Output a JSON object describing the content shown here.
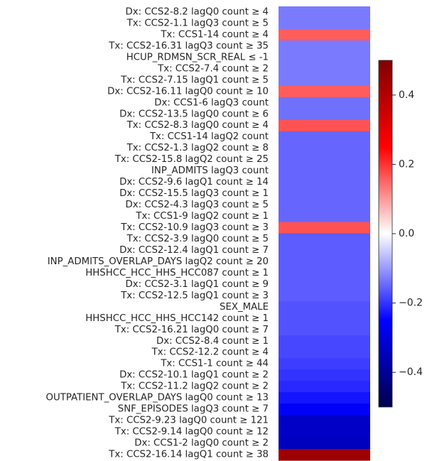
{
  "chart_data": {
    "type": "heatmap",
    "colormap": "seismic",
    "color_scale": {
      "min": -0.5,
      "max": 0.5
    },
    "colorbar_ticks": [
      0.4,
      0.2,
      0.0,
      -0.2,
      -0.4
    ],
    "colorbar_tick_labels": [
      "0.4",
      "0.2",
      "0.0",
      "−0.2",
      "−0.4"
    ],
    "grid": false,
    "rows": [
      {
        "label": "Dx:   CCS2-8.2 lagQ0 count ≥ 4",
        "value": -0.13
      },
      {
        "label": "Tx:   CCS2-1.1 lagQ3 count ≥ 5",
        "value": -0.13
      },
      {
        "label": "Tx:   CCS1-14 count ≥ 4",
        "value": 0.16
      },
      {
        "label": "Tx:   CCS2-16.31 lagQ3 count ≥ 35",
        "value": -0.13
      },
      {
        "label": "HCUP_RDMSN_SCR_REAL ≤ -1",
        "value": -0.13
      },
      {
        "label": "Tx:   CCS2-7.4 count ≥ 2",
        "value": -0.13
      },
      {
        "label": "Tx:   CCS2-7.15 lagQ1 count ≥ 5",
        "value": -0.13
      },
      {
        "label": "Dx:   CCS2-16.11 lagQ0 count ≥ 10",
        "value": 0.16
      },
      {
        "label": "Dx:   CCS1-6 lagQ3 count",
        "value": -0.14
      },
      {
        "label": "Dx:   CCS2-13.5 lagQ0 count ≥ 6",
        "value": -0.14
      },
      {
        "label": "Tx:   CCS2-8.3 lagQ0 count ≥ 4",
        "value": 0.17
      },
      {
        "label": "Tx:   CCS1-14 lagQ2 count",
        "value": -0.15
      },
      {
        "label": "Tx:   CCS2-1.3 lagQ2 count ≥ 8",
        "value": -0.15
      },
      {
        "label": "Tx:   CCS2-15.8 lagQ2 count ≥ 25",
        "value": -0.15
      },
      {
        "label": "INP_ADMITS lagQ3 count",
        "value": -0.15
      },
      {
        "label": "Dx:   CCS2-9.6 lagQ1 count ≥ 14",
        "value": -0.15
      },
      {
        "label": "Dx:   CCS2-15.5 lagQ3 count ≥ 1",
        "value": -0.15
      },
      {
        "label": "Dx:   CCS2-4.3 lagQ3 count ≥ 5",
        "value": -0.15
      },
      {
        "label": "Tx:   CCS1-9 lagQ2 count ≥ 1",
        "value": -0.15
      },
      {
        "label": "Tx:   CCS2-10.9 lagQ3 count ≥ 3",
        "value": 0.17
      },
      {
        "label": "Tx:   CCS2-3.9 lagQ0 count ≥ 5",
        "value": -0.16
      },
      {
        "label": "Dx:   CCS2-12.4 lagQ1 count ≥ 7",
        "value": -0.16
      },
      {
        "label": "INP_ADMITS_OVERLAP_DAYS lagQ2 count ≥ 20",
        "value": -0.16
      },
      {
        "label": "HHSHCC_HCC_HHS_HCC087 count ≥ 1",
        "value": -0.16
      },
      {
        "label": "Dx:   CCS2-3.1 lagQ1 count ≥ 9",
        "value": -0.16
      },
      {
        "label": "Tx:   CCS2-12.5 lagQ1 count ≥ 3",
        "value": -0.16
      },
      {
        "label": "SEX_MALE",
        "value": -0.17
      },
      {
        "label": "HHSHCC_HCC_HHS_HCC142 count ≥ 1",
        "value": -0.17
      },
      {
        "label": "Tx:   CCS2-16.21 lagQ0 count ≥ 7",
        "value": -0.17
      },
      {
        "label": "Dx:   CCS2-8.4 count ≥ 1",
        "value": -0.18
      },
      {
        "label": "Tx:   CCS2-12.2 count ≥ 4",
        "value": -0.18
      },
      {
        "label": "Tx:   CCS1-1 count ≥ 44",
        "value": -0.19
      },
      {
        "label": "Dx:   CCS2-10.1 lagQ1 count ≥ 2",
        "value": -0.2
      },
      {
        "label": "Tx:   CCS2-11.2 lagQ2 count ≥ 2",
        "value": -0.21
      },
      {
        "label": "OUTPATIENT_OVERLAP_DAYS lagQ0 count ≥ 13",
        "value": -0.23
      },
      {
        "label": "SNF_EPISODES lagQ3 count ≥ 7",
        "value": -0.26
      },
      {
        "label": "Tx:   CCS2-9.23 lagQ0 count ≥ 121",
        "value": -0.33
      },
      {
        "label": "Tx:   CCS2-9.14 lagQ0 count ≥ 12",
        "value": -0.33
      },
      {
        "label": "Dx:   CCS1-2 lagQ0 count ≥ 2",
        "value": -0.34
      },
      {
        "label": "Tx:   CCS2-16.14 lagQ1 count ≥ 38",
        "value": 0.44
      }
    ]
  }
}
